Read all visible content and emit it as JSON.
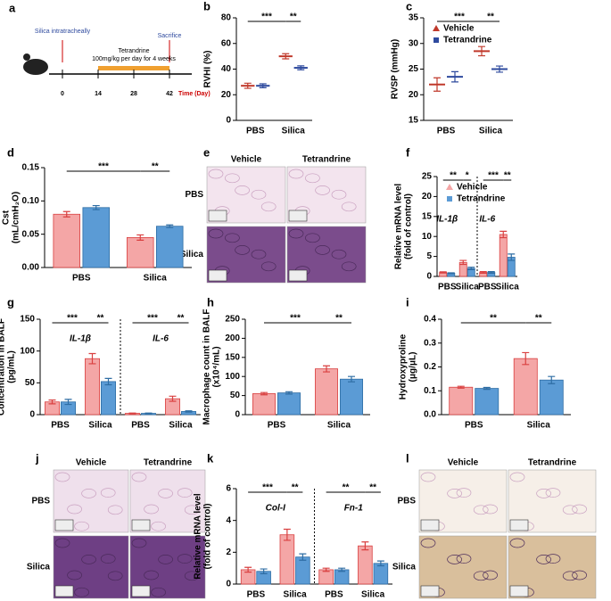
{
  "timeline": {
    "letter": "a",
    "days": [
      0,
      14,
      28,
      42
    ],
    "unit": "Time (Day)",
    "silica": "Silica intratracheally",
    "drug": "Tetrandrine",
    "dose": "100mg/kg per day for 4 weeks",
    "end": "Sacrifice"
  },
  "micrographs": [
    {
      "letter": "e",
      "columns": [
        "Vehicle",
        "Tetrandrine"
      ],
      "rows": [
        "PBS",
        "Silica"
      ]
    },
    {
      "letter": "j",
      "columns": [
        "Vehicle",
        "Tetrandrine"
      ],
      "rows": [
        "PBS",
        "Silica"
      ]
    },
    {
      "letter": "l",
      "columns": [
        "Vehicle",
        "Tetrandrine"
      ],
      "rows": [
        "PBS",
        "Silica"
      ]
    }
  ],
  "chart_data": [
    {
      "type": "dot",
      "panel": "b",
      "ylabel": [
        "RVHI (%)"
      ],
      "categories": [
        "PBS",
        "Silica"
      ],
      "series": [
        {
          "color": "#c0392b",
          "values": [
            27,
            50
          ],
          "errors": [
            2,
            2
          ]
        },
        {
          "color": "#2e4a9e",
          "values": [
            27,
            41
          ],
          "errors": [
            1.5,
            1.5
          ]
        }
      ],
      "ylim": [
        0,
        80
      ],
      "yticks": [
        0,
        20,
        40,
        60,
        80
      ],
      "significance": [
        "***",
        "**"
      ]
    },
    {
      "type": "dot",
      "panel": "c",
      "ylabel": [
        "RVSP (mmHg)"
      ],
      "categories": [
        "PBS",
        "Silica"
      ],
      "legend": true,
      "series": [
        {
          "name": "Vehicle",
          "color": "#c0392b",
          "values": [
            22,
            28.5
          ],
          "errors": [
            1.3,
            0.9
          ]
        },
        {
          "name": "Tetrandrine",
          "color": "#2e4a9e",
          "values": [
            23.5,
            25
          ],
          "errors": [
            1,
            0.6
          ]
        }
      ],
      "ylim": [
        15,
        35
      ],
      "yticks": [
        15,
        20,
        25,
        30,
        35
      ],
      "significance": [
        "***",
        "**"
      ]
    },
    {
      "type": "bar",
      "panel": "d",
      "ylabel": [
        "Cst",
        "(mL/cmH₂O)"
      ],
      "categories": [
        "PBS",
        "Silica"
      ],
      "series": [
        {
          "color": "#f4a6a6",
          "values": [
            0.08,
            0.045
          ],
          "errors": [
            0.004,
            0.004
          ]
        },
        {
          "color": "#5b9bd5",
          "values": [
            0.09,
            0.062
          ],
          "errors": [
            0.003,
            0.002
          ]
        }
      ],
      "ylim": [
        0,
        0.15
      ],
      "yticks": [
        {
          "value": 0,
          "label": "0.00"
        },
        0.05,
        {
          "value": 0.1,
          "label": "0.10"
        },
        0.15
      ],
      "significance": [
        "***",
        "**"
      ]
    },
    {
      "type": "bar",
      "panel": "f",
      "ylabel": [
        "Relative mRNA level",
        "(fold of control)"
      ],
      "categories": [
        "PBS",
        "Silica",
        "PBS",
        "Silica"
      ],
      "groups": [
        "IL-1β",
        "IL-6"
      ],
      "legend": true,
      "series": [
        {
          "name": "Vehicle",
          "color": "#f4a6a6",
          "values": [
            1,
            3.5,
            1,
            10.5
          ],
          "errors": [
            0.15,
            0.5,
            0.2,
            0.8
          ]
        },
        {
          "name": "Tetrandrine",
          "color": "#5b9bd5",
          "values": [
            0.8,
            2,
            1,
            4.8
          ],
          "errors": [
            0.1,
            0.3,
            0.2,
            0.8
          ]
        }
      ],
      "ylim": [
        0,
        25
      ],
      "yticks": [
        0,
        5,
        10,
        15,
        20,
        25
      ],
      "significance": [
        "**",
        "*",
        "***",
        "**"
      ]
    },
    {
      "type": "bar",
      "panel": "g",
      "ylabel": [
        "Concentration in BALF",
        "(pg/mL)"
      ],
      "categories": [
        "PBS",
        "Silica",
        "PBS",
        "Silica"
      ],
      "groups": [
        "IL-1β",
        "IL-6"
      ],
      "series": [
        {
          "color": "#f4a6a6",
          "values": [
            20,
            88,
            2,
            25
          ],
          "errors": [
            3,
            8,
            0.5,
            4
          ]
        },
        {
          "color": "#5b9bd5",
          "values": [
            20,
            52,
            2,
            5
          ],
          "errors": [
            4,
            5,
            0.5,
            1
          ]
        }
      ],
      "ylim": [
        0,
        150
      ],
      "yticks": [
        0,
        50,
        100,
        150
      ],
      "significance": [
        "***",
        "**",
        "***",
        "**"
      ]
    },
    {
      "type": "bar",
      "panel": "h",
      "ylabel": [
        "Macrophage count in BALF",
        "(x10⁴/mL)"
      ],
      "categories": [
        "PBS",
        "Silica"
      ],
      "series": [
        {
          "color": "#f4a6a6",
          "values": [
            55,
            120
          ],
          "errors": [
            3,
            8
          ]
        },
        {
          "color": "#5b9bd5",
          "values": [
            57,
            93
          ],
          "errors": [
            3,
            7
          ]
        }
      ],
      "ylim": [
        0,
        250
      ],
      "yticks": [
        0,
        50,
        100,
        150,
        200,
        250
      ],
      "significance": [
        "***",
        "**"
      ]
    },
    {
      "type": "bar",
      "panel": "i",
      "ylabel": [
        "Hydroxyproline",
        "(μg/μL)"
      ],
      "categories": [
        "PBS",
        "Silica"
      ],
      "series": [
        {
          "color": "#f4a6a6",
          "values": [
            0.115,
            0.235
          ],
          "errors": [
            0.004,
            0.025
          ]
        },
        {
          "color": "#5b9bd5",
          "values": [
            0.11,
            0.145
          ],
          "errors": [
            0.004,
            0.015
          ]
        }
      ],
      "ylim": [
        0,
        0.4
      ],
      "yticks": [
        {
          "value": 0,
          "label": "0.0"
        },
        0.1,
        0.2,
        0.3,
        0.4
      ],
      "significance": [
        "**",
        "**"
      ]
    },
    {
      "type": "bar",
      "panel": "k",
      "ylabel": [
        "Relative mRNA level",
        "(fold of control)"
      ],
      "categories": [
        "PBS",
        "Silica",
        "PBS",
        "Silica"
      ],
      "groups": [
        "Col-I",
        "Fn-1"
      ],
      "series": [
        {
          "color": "#f4a6a6",
          "values": [
            0.9,
            3.1,
            0.9,
            2.4
          ],
          "errors": [
            0.15,
            0.35,
            0.1,
            0.25
          ]
        },
        {
          "color": "#5b9bd5",
          "values": [
            0.8,
            1.7,
            0.9,
            1.3
          ],
          "errors": [
            0.15,
            0.2,
            0.1,
            0.15
          ]
        }
      ],
      "ylim": [
        0,
        6
      ],
      "yticks": [
        0,
        2,
        4,
        6
      ],
      "significance": [
        "***",
        "**",
        "**",
        "**"
      ]
    }
  ]
}
